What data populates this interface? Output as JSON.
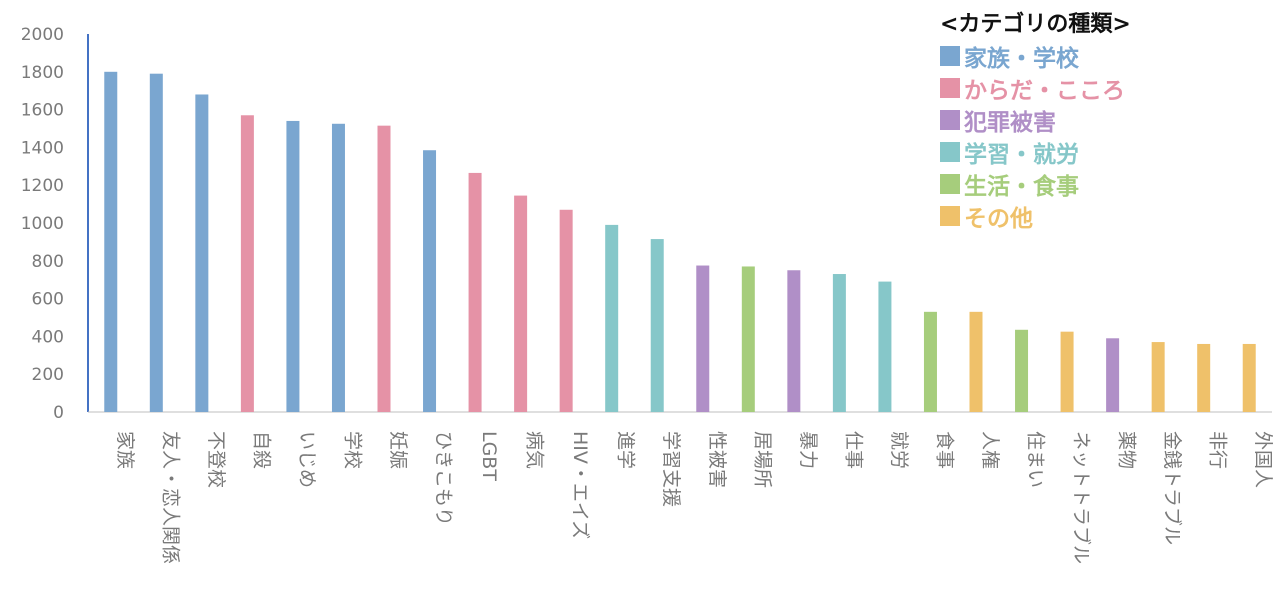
{
  "chart_data": {
    "type": "bar",
    "ylim": [
      0,
      2000
    ],
    "yticks": [
      0,
      200,
      400,
      600,
      800,
      1000,
      1200,
      1400,
      1600,
      1800,
      2000
    ],
    "categories": [
      "家族",
      "友人・恋人関係",
      "不登校",
      "自殺",
      "いじめ",
      "学校",
      "妊娠",
      "ひきこもり",
      "LGBT",
      "病気",
      "HIV・エイズ",
      "進学",
      "学習支援",
      "性被害",
      "居場所",
      "暴力",
      "仕事",
      "就労",
      "食事",
      "人権",
      "住まい",
      "ネットトラブル",
      "薬物",
      "金銭トラブル",
      "非行",
      "外国人"
    ],
    "values": [
      1800,
      1790,
      1680,
      1570,
      1540,
      1525,
      1515,
      1385,
      1265,
      1145,
      1070,
      990,
      915,
      775,
      770,
      750,
      730,
      690,
      530,
      530,
      435,
      425,
      390,
      370,
      360,
      360
    ],
    "bar_groups": [
      0,
      0,
      0,
      1,
      0,
      0,
      1,
      0,
      1,
      1,
      1,
      3,
      3,
      2,
      4,
      2,
      3,
      3,
      4,
      5,
      4,
      5,
      2,
      5,
      5,
      5
    ],
    "legend": {
      "title": "<カテゴリの種類>",
      "items": [
        {
          "label": "家族・学校",
          "color": "#7aa6d0"
        },
        {
          "label": "からだ・こころ",
          "color": "#e592a6"
        },
        {
          "label": "犯罪被害",
          "color": "#b08fc7"
        },
        {
          "label": "学習・就労",
          "color": "#86c7c9"
        },
        {
          "label": "生活・食事",
          "color": "#a6cd7c"
        },
        {
          "label": "その他",
          "color": "#efc16a"
        }
      ]
    }
  }
}
